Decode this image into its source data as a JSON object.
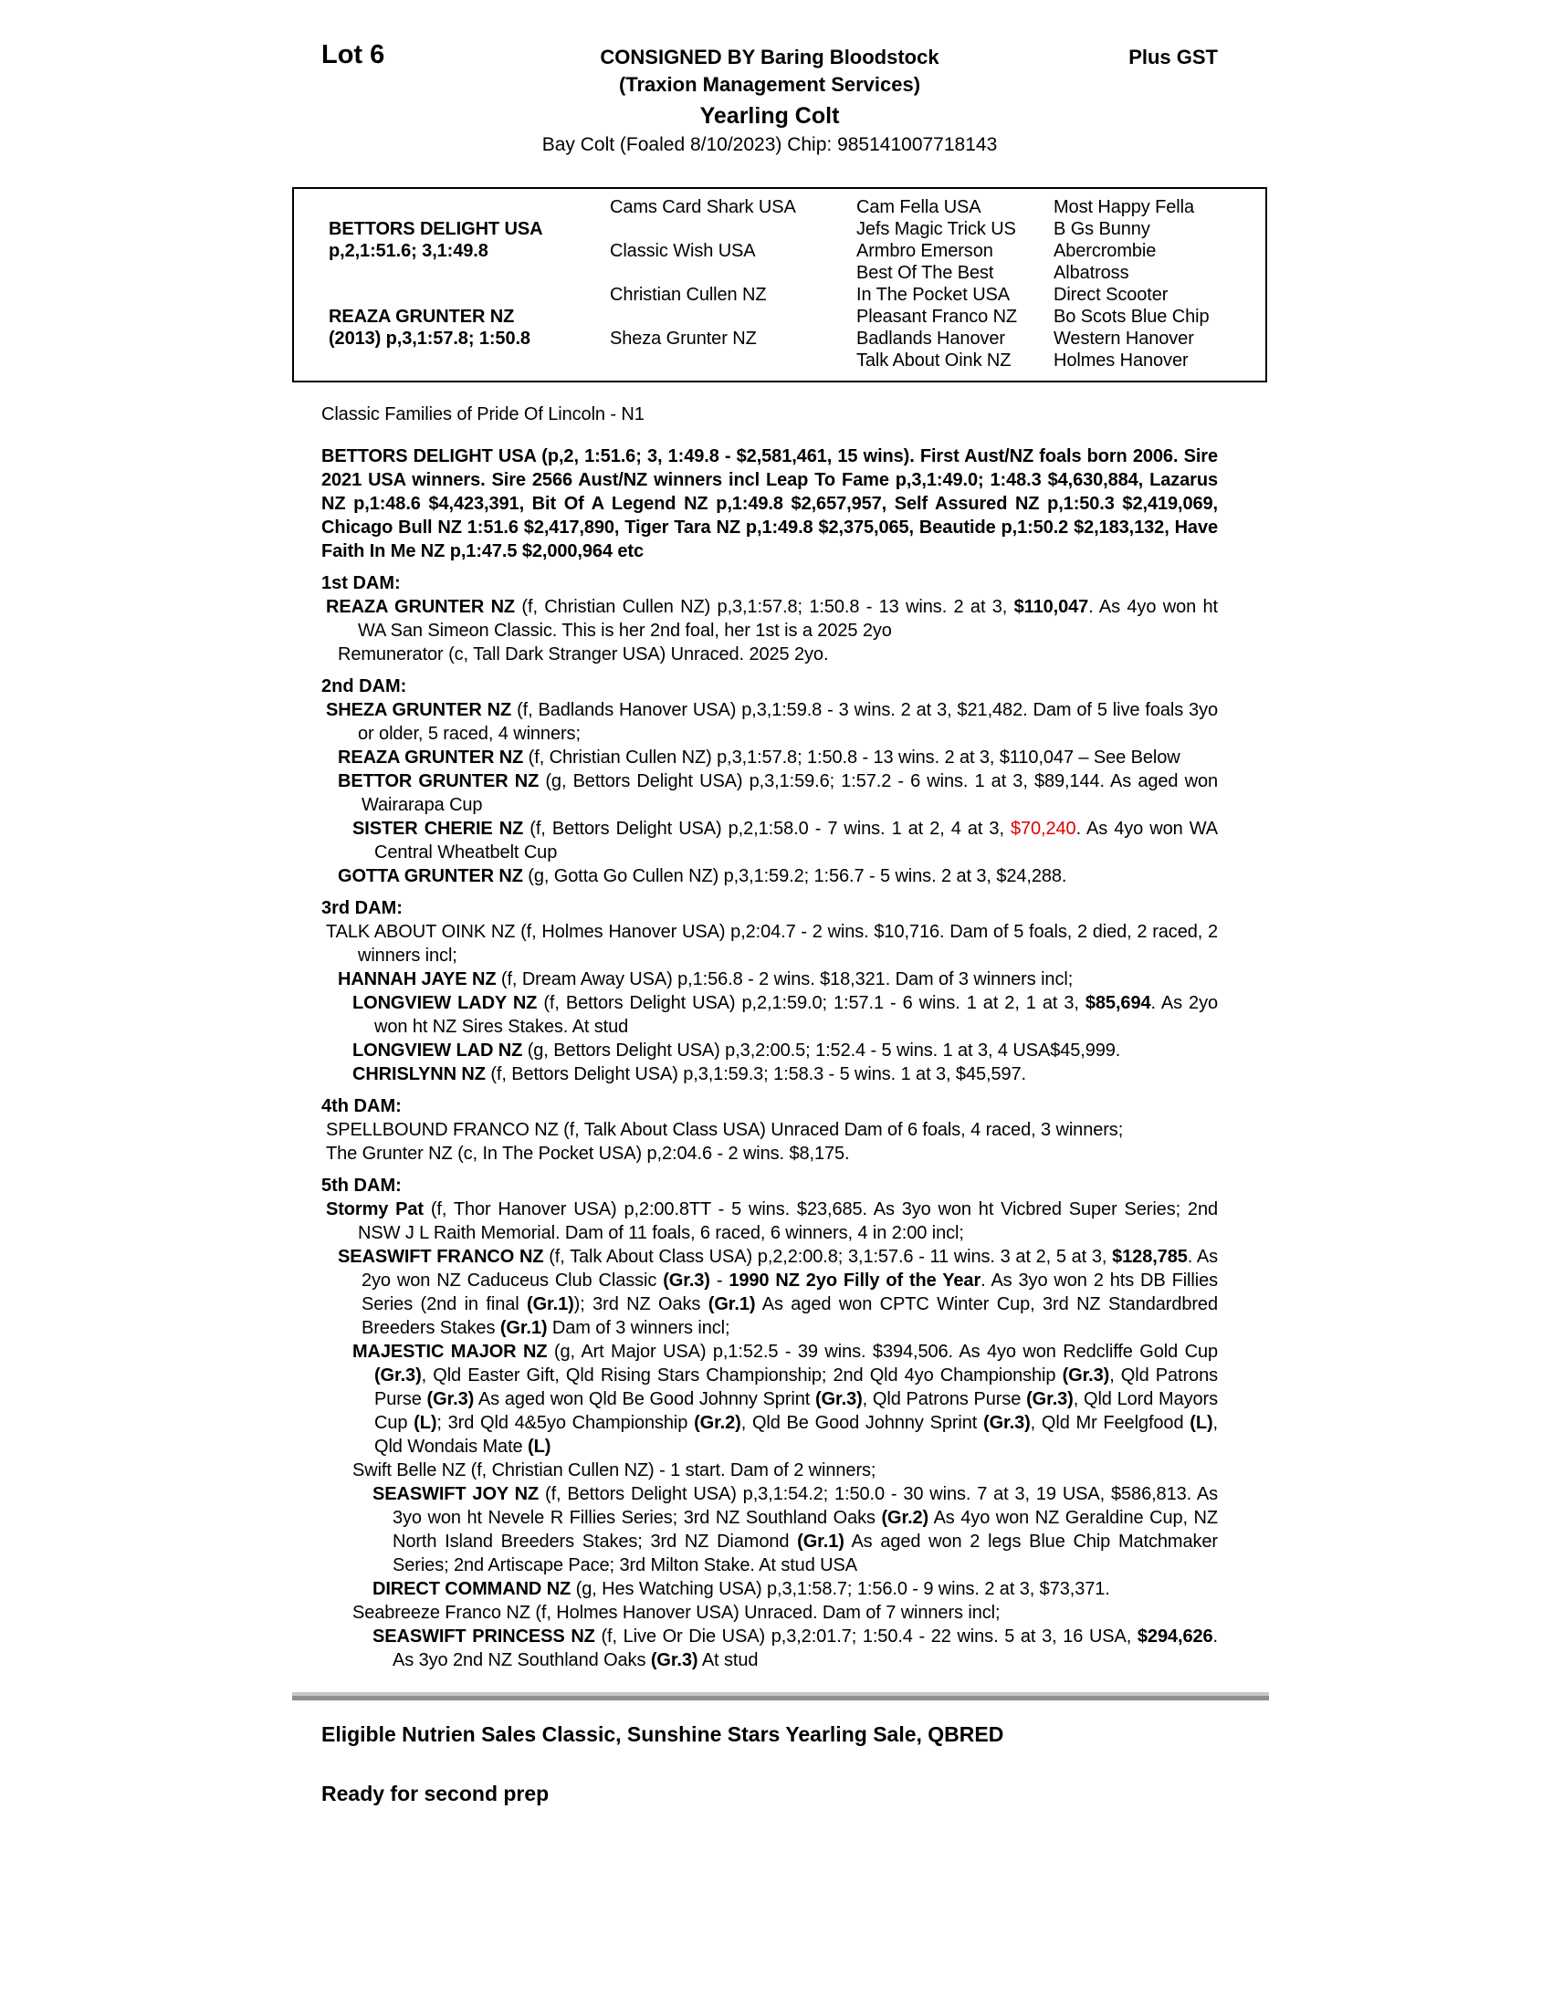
{
  "header": {
    "lot": "Lot 6",
    "consigned_by": "CONSIGNED BY Baring Bloodstock",
    "plus_gst": "Plus GST",
    "consignor": "(Traxion Management Services)",
    "category": "Yearling Colt",
    "foal_details": "Bay Colt (Foaled 8/10/2023) Chip: 985141007718143"
  },
  "pedigree_table": {
    "generation1": [
      {
        "name": "BETTORS DELIGHT USA",
        "record": "p,2,1:51.6; 3,1:49.8"
      },
      {
        "name": "REAZA GRUNTER NZ",
        "record": "(2013) p,3,1:57.8; 1:50.8"
      }
    ],
    "generation2": [
      "Cams Card Shark USA",
      "Classic Wish USA",
      "Christian Cullen NZ",
      "Sheza Grunter NZ"
    ],
    "generation3": [
      "Cam Fella USA",
      "Jefs Magic Trick US",
      "Armbro Emerson",
      "Best Of The Best",
      "In The Pocket USA",
      "Pleasant Franco NZ",
      "Badlands Hanover",
      "Talk About Oink NZ"
    ],
    "generation4": [
      "Most Happy Fella",
      "B Gs Bunny",
      "Abercrombie",
      "Albatross",
      "Direct Scooter",
      "Bo Scots Blue Chip",
      "Western Hanover",
      "Holmes Hanover"
    ]
  },
  "family_note": "Classic Families of Pride Of Lincoln - N1",
  "sire_paragraph": "BETTORS DELIGHT USA (p,2, 1:51.6; 3, 1:49.8 - $2,581,461, 15 wins). First Aust/NZ foals born 2006. Sire 2021 USA winners. Sire 2566 Aust/NZ winners incl Leap To Fame p,3,1:49.0; 1:48.3 $4,630,884, Lazarus NZ p,1:48.6 $4,423,391, Bit Of A Legend NZ p,1:49.8 $2,657,957, Self Assured NZ p,1:50.3 $2,419,069, Chicago Bull NZ 1:51.6 $2,417,890, Tiger Tara NZ p,1:49.8 $2,375,065, Beautide p,1:50.2 $2,183,132, Have Faith In Me NZ p,1:47.5 $2,000,964 etc",
  "dam_sections": [
    {
      "heading": "1st DAM:",
      "entries": [
        {
          "level": 0,
          "segments": [
            {
              "t": "REAZA GRUNTER NZ",
              "b": true
            },
            {
              "t": " (f, Christian Cullen NZ) p,3,1:57.8; 1:50.8 - 13 wins. 2 at 3, "
            },
            {
              "t": "$110,047",
              "b": true
            },
            {
              "t": ". As 4yo won ht WA San Simeon Classic. This is her 2nd foal, her 1st is a 2025 2yo"
            }
          ]
        },
        {
          "level": 1,
          "segments": [
            {
              "t": "Remunerator (c, Tall Dark Stranger USA) Unraced. 2025 2yo."
            }
          ]
        }
      ]
    },
    {
      "heading": "2nd DAM:",
      "entries": [
        {
          "level": 0,
          "segments": [
            {
              "t": "SHEZA GRUNTER NZ",
              "b": true
            },
            {
              "t": " (f, Badlands Hanover USA) p,3,1:59.8 - 3 wins. 2 at 3, $21,482. Dam of 5 live foals 3yo or older, 5 raced, 4 winners;"
            }
          ]
        },
        {
          "level": 1,
          "segments": [
            {
              "t": "REAZA GRUNTER NZ",
              "b": true
            },
            {
              "t": " (f, Christian Cullen NZ) p,3,1:57.8; 1:50.8 - 13 wins. 2 at 3, $110,047 – See Below"
            }
          ]
        },
        {
          "level": 1,
          "segments": [
            {
              "t": "BETTOR GRUNTER NZ",
              "b": true
            },
            {
              "t": " (g, Bettors Delight USA) p,3,1:59.6; 1:57.2 - 6 wins. 1 at 3, $89,144. As aged won Wairarapa Cup"
            }
          ]
        },
        {
          "level": 2,
          "segments": [
            {
              "t": "SISTER CHERIE NZ",
              "b": true
            },
            {
              "t": " (f, Bettors Delight USA) p,2,1:58.0 - 7 wins. 1 at 2, 4 at 3, "
            },
            {
              "t": "$70,240",
              "r": true
            },
            {
              "t": ". As 4yo won WA Central Wheatbelt Cup"
            }
          ]
        },
        {
          "level": 1,
          "segments": [
            {
              "t": "GOTTA GRUNTER NZ",
              "b": true
            },
            {
              "t": " (g, Gotta Go Cullen NZ) p,3,1:59.2; 1:56.7 - 5 wins. 2 at 3, $24,288."
            }
          ]
        }
      ]
    },
    {
      "heading": "3rd DAM:",
      "entries": [
        {
          "level": 0,
          "segments": [
            {
              "t": "TALK ABOUT OINK NZ (f, Holmes Hanover USA) p,2:04.7 - 2 wins. $10,716. Dam of 5 foals, 2 died, 2 raced, 2 winners incl;"
            }
          ]
        },
        {
          "level": 1,
          "segments": [
            {
              "t": "HANNAH JAYE NZ",
              "b": true
            },
            {
              "t": " (f, Dream Away USA) p,1:56.8 - 2 wins. $18,321. Dam of 3 winners incl;"
            }
          ]
        },
        {
          "level": 2,
          "segments": [
            {
              "t": "LONGVIEW LADY NZ",
              "b": true
            },
            {
              "t": " (f, Bettors Delight USA) p,2,1:59.0; 1:57.1 - 6 wins. 1 at 2, 1 at 3, "
            },
            {
              "t": "$85,694",
              "b": true
            },
            {
              "t": ". As 2yo won ht NZ Sires Stakes. At stud"
            }
          ]
        },
        {
          "level": 2,
          "segments": [
            {
              "t": "LONGVIEW LAD NZ",
              "b": true
            },
            {
              "t": " (g, Bettors Delight USA) p,3,2:00.5; 1:52.4 - 5 wins. 1 at 3, 4 USA$45,999."
            }
          ]
        },
        {
          "level": 2,
          "segments": [
            {
              "t": "CHRISLYNN NZ",
              "b": true
            },
            {
              "t": " (f, Bettors Delight USA) p,3,1:59.3; 1:58.3 - 5 wins. 1 at 3, $45,597."
            }
          ]
        }
      ]
    },
    {
      "heading": "4th DAM:",
      "entries": [
        {
          "level": 0,
          "segments": [
            {
              "t": "SPELLBOUND FRANCO NZ (f, Talk About Class USA) Unraced Dam of 6 foals, 4 raced, 3 winners;"
            }
          ]
        },
        {
          "level": 0,
          "segments": [
            {
              "t": "The Grunter NZ (c, In The Pocket USA) p,2:04.6 - 2 wins. $8,175."
            }
          ]
        }
      ]
    },
    {
      "heading": "5th DAM:",
      "entries": [
        {
          "level": 0,
          "segments": [
            {
              "t": "Stormy Pat",
              "b": true
            },
            {
              "t": " (f, Thor Hanover USA) p,2:00.8TT - 5 wins. $23,685. As 3yo won ht Vicbred Super Series; 2nd NSW J L Raith Memorial. Dam of 11 foals, 6 raced, 6 winners, 4 in 2:00 incl;"
            }
          ]
        },
        {
          "level": 1,
          "segments": [
            {
              "t": "SEASWIFT FRANCO NZ",
              "b": true
            },
            {
              "t": " (f, Talk About Class USA) p,2,2:00.8; 3,1:57.6 - 11 wins. 3 at 2, 5 at 3, "
            },
            {
              "t": "$128,785",
              "b": true
            },
            {
              "t": ". As 2yo won NZ Caduceus Club Classic "
            },
            {
              "t": "(Gr.3)",
              "b": true
            },
            {
              "t": " - "
            },
            {
              "t": "1990 NZ 2yo Filly of the Year",
              "b": true
            },
            {
              "t": ". As 3yo won 2 hts DB Fillies Series (2nd in final "
            },
            {
              "t": "(Gr.1)",
              "b": true
            },
            {
              "t": "); 3rd NZ Oaks "
            },
            {
              "t": "(Gr.1)",
              "b": true
            },
            {
              "t": " As aged won CPTC Winter Cup, 3rd NZ Standardbred Breeders Stakes "
            },
            {
              "t": "(Gr.1)",
              "b": true
            },
            {
              "t": " Dam of 3 winners incl;"
            }
          ]
        },
        {
          "level": 2,
          "segments": [
            {
              "t": "MAJESTIC MAJOR NZ",
              "b": true
            },
            {
              "t": " (g, Art Major USA) p,1:52.5 - 39 wins. $394,506. As 4yo won Redcliffe Gold Cup "
            },
            {
              "t": "(Gr.3)",
              "b": true
            },
            {
              "t": ", Qld Easter Gift, Qld Rising Stars Championship; 2nd Qld 4yo Championship "
            },
            {
              "t": "(Gr.3)",
              "b": true
            },
            {
              "t": ", Qld Patrons Purse "
            },
            {
              "t": "(Gr.3)",
              "b": true
            },
            {
              "t": " As aged won Qld Be Good Johnny Sprint "
            },
            {
              "t": "(Gr.3)",
              "b": true
            },
            {
              "t": ", Qld Patrons Purse "
            },
            {
              "t": "(Gr.3)",
              "b": true
            },
            {
              "t": ", Qld Lord Mayors Cup "
            },
            {
              "t": "(L)",
              "b": true
            },
            {
              "t": "; 3rd Qld 4&5yo Championship "
            },
            {
              "t": "(Gr.2)",
              "b": true
            },
            {
              "t": ", Qld Be Good Johnny Sprint "
            },
            {
              "t": "(Gr.3)",
              "b": true
            },
            {
              "t": ", Qld Mr Feelgfood "
            },
            {
              "t": "(L)",
              "b": true
            },
            {
              "t": ", Qld Wondais Mate "
            },
            {
              "t": "(L)",
              "b": true
            }
          ]
        },
        {
          "level": 2,
          "segments": [
            {
              "t": "Swift Belle NZ (f, Christian Cullen NZ) - 1 start. Dam of 2 winners;"
            }
          ]
        },
        {
          "level": 3,
          "segments": [
            {
              "t": "SEASWIFT JOY NZ",
              "b": true
            },
            {
              "t": " (f, Bettors Delight USA) p,3,1:54.2; 1:50.0 - 30 wins. 7 at 3, 19 USA, $586,813. As 3yo won ht Nevele R Fillies Series; 3rd NZ Southland Oaks "
            },
            {
              "t": "(Gr.2)",
              "b": true
            },
            {
              "t": " As 4yo won NZ Geraldine Cup, NZ North Island Breeders Stakes; 3rd NZ Diamond "
            },
            {
              "t": "(Gr.1)",
              "b": true
            },
            {
              "t": " As aged won 2 legs Blue Chip Matchmaker Series; 2nd Artiscape Pace; 3rd Milton Stake. At stud USA"
            }
          ]
        },
        {
          "level": 3,
          "segments": [
            {
              "t": "DIRECT COMMAND NZ",
              "b": true
            },
            {
              "t": " (g, Hes Watching USA) p,3,1:58.7; 1:56.0 - 9 wins. 2 at 3, $73,371."
            }
          ]
        },
        {
          "level": 2,
          "segments": [
            {
              "t": "Seabreeze Franco NZ (f, Holmes Hanover USA) Unraced. Dam of 7 winners incl;"
            }
          ]
        },
        {
          "level": 3,
          "segments": [
            {
              "t": "SEASWIFT PRINCESS NZ",
              "b": true
            },
            {
              "t": " (f, Live Or Die USA) p,3,2:01.7; 1:50.4 - 22 wins. 5 at 3, 16 USA, "
            },
            {
              "t": "$294,626",
              "b": true
            },
            {
              "t": ". As 3yo 2nd NZ Southland Oaks "
            },
            {
              "t": "(Gr.3)",
              "b": true
            },
            {
              "t": " At stud"
            }
          ]
        }
      ]
    }
  ],
  "footer": {
    "eligibility": "Eligible Nutrien Sales Classic, Sunshine Stars Yearling Sale, QBRED",
    "status": "Ready for second prep"
  },
  "colors": {
    "highlight_red": "#dd0000",
    "divider_gray_light": "#c6c6c6",
    "divider_gray_dark": "#8e8e8e"
  }
}
